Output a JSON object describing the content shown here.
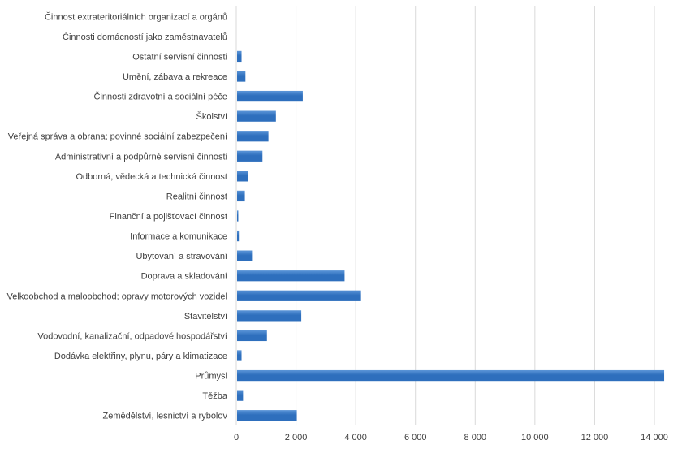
{
  "colors": {
    "bar": "#2e6fbd",
    "bar_highlight": "#5b95d8",
    "grid": "#d9d9d9",
    "text": "#404040"
  },
  "chart_data": {
    "type": "bar",
    "orientation": "horizontal",
    "categories": [
      "Činnost extrateritoriálních organizací a orgánů",
      "Činnosti domácností jako zaměstnavatelů",
      "Ostatní servisní činnosti",
      "Umění, zábava a rekreace",
      "Činnosti zdravotní a sociální péče",
      "Školství",
      "Veřejná správa a obrana; povinné sociální zabezpečení",
      "Administrativní a podpůrné servisní činnosti",
      "Odborná, vědecká a technická činnost",
      "Realitní činnost",
      "Finanční a pojišťovací činnost",
      "Informace a komunikace",
      "Ubytování a stravování",
      "Doprava a skladování",
      "Velkoobchod a maloobchod; opravy motorových vozidel",
      "Stavitelství",
      "Vodovodní, kanalizační, odpadové hospodářství",
      "Dodávka elektřiny, plynu, páry a klimatizace",
      "Průmysl",
      "Těžba",
      "Zemědělství, lesnictví a rybolov"
    ],
    "values": [
      0,
      0,
      150,
      280,
      2200,
      1300,
      1050,
      850,
      370,
      260,
      40,
      60,
      500,
      3600,
      4150,
      2150,
      1000,
      150,
      14300,
      200,
      2000
    ],
    "xlim": [
      0,
      14000
    ],
    "xticks": [
      0,
      2000,
      4000,
      6000,
      8000,
      10000,
      12000,
      14000
    ],
    "xtick_labels": [
      "0",
      "2 000",
      "4 000",
      "6 000",
      "8 000",
      "10 000",
      "12 000",
      "14 000"
    ],
    "grid": true,
    "title": "",
    "xlabel": "",
    "ylabel": ""
  }
}
